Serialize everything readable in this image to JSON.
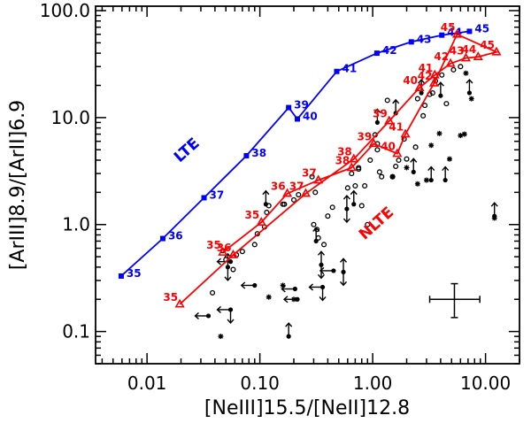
{
  "chart_data": {
    "type": "scatter",
    "xscale": "log",
    "yscale": "log",
    "xlim": [
      0.0035,
      20
    ],
    "ylim": [
      0.05,
      110
    ],
    "xticks": [
      {
        "v": 0.01,
        "label": "0.01"
      },
      {
        "v": 0.1,
        "label": "0.10"
      },
      {
        "v": 1,
        "label": "1.00"
      },
      {
        "v": 10,
        "label": "10.00"
      }
    ],
    "yticks": [
      {
        "v": 0.1,
        "label": "0.1"
      },
      {
        "v": 1,
        "label": "1.0"
      },
      {
        "v": 10,
        "label": "10.0"
      },
      {
        "v": 100,
        "label": "100.0"
      }
    ],
    "xlabel": "[NeIII]15.5/[NeII]12.8",
    "ylabel": "[ArIII]8.9/[ArII]6.9",
    "series": [
      {
        "name": "LTE",
        "color": "#0000ff",
        "marker": "square",
        "label_pos": [
          0.024,
          4.6
        ],
        "points": [
          {
            "x": 0.0059,
            "y": 0.33,
            "label": "35"
          },
          {
            "x": 0.0138,
            "y": 0.74,
            "label": "36"
          },
          {
            "x": 0.032,
            "y": 1.78,
            "label": "37"
          },
          {
            "x": 0.076,
            "y": 4.4,
            "label": "38"
          },
          {
            "x": 0.18,
            "y": 12.4,
            "label": "39"
          },
          {
            "x": 0.215,
            "y": 9.7,
            "label": "40"
          },
          {
            "x": 0.48,
            "y": 27.0,
            "label": "41"
          },
          {
            "x": 1.09,
            "y": 40.0,
            "label": "42"
          },
          {
            "x": 2.2,
            "y": 51.0,
            "label": "43"
          },
          {
            "x": 4.1,
            "y": 59.0,
            "label": "44"
          },
          {
            "x": 7.2,
            "y": 64.0,
            "label": "45"
          }
        ]
      },
      {
        "name": "NLTE",
        "color": "#ff0000",
        "marker": "triangle",
        "label_pos": [
          1.15,
          0.95
        ],
        "points": [
          {
            "x": 0.0195,
            "y": 0.18,
            "label": "35"
          },
          {
            "x": 0.058,
            "y": 0.52,
            "label": "36"
          },
          {
            "x": 0.255,
            "y": 1.95,
            "label": "37"
          },
          {
            "x": 0.68,
            "y": 4.1,
            "label": "38"
          },
          {
            "x": 1.4,
            "y": 9.3,
            "label": "39"
          },
          {
            "x": 2.6,
            "y": 19.0,
            "label": "40"
          },
          {
            "x": 3.55,
            "y": 25.0,
            "label": "41"
          },
          {
            "x": 4.9,
            "y": 32.0,
            "label": "42"
          },
          {
            "x": 6.7,
            "y": 36.0,
            "label": "43"
          },
          {
            "x": 8.6,
            "y": 37.0,
            "label": "44"
          },
          {
            "x": 12.5,
            "y": 41.0,
            "label": "45"
          },
          {
            "x": 5.6,
            "y": 60.0,
            "label": "45"
          },
          {
            "x": 3.5,
            "y": 21.0,
            "label": "42"
          },
          {
            "x": 1.95,
            "y": 7.0,
            "label": "41"
          },
          {
            "x": 1.65,
            "y": 4.6,
            "label": "40"
          },
          {
            "x": 1.02,
            "y": 5.7,
            "label": "39"
          },
          {
            "x": 0.65,
            "y": 3.4,
            "label": "38"
          },
          {
            "x": 0.33,
            "y": 2.6,
            "label": "37"
          },
          {
            "x": 0.175,
            "y": 1.95,
            "label": "36"
          },
          {
            "x": 0.103,
            "y": 1.05,
            "label": "35"
          },
          {
            "x": 0.047,
            "y": 0.55,
            "label": "35"
          }
        ]
      }
    ],
    "observations": {
      "circles": [
        [
          0.038,
          0.23
        ],
        [
          0.047,
          0.57
        ],
        [
          0.05,
          0.47
        ],
        [
          0.058,
          0.38
        ],
        [
          0.062,
          0.52
        ],
        [
          0.07,
          0.56
        ],
        [
          0.09,
          0.65
        ],
        [
          0.095,
          0.82
        ],
        [
          0.11,
          0.95
        ],
        [
          0.115,
          1.3
        ],
        [
          0.12,
          1.5
        ],
        [
          0.16,
          1.55
        ],
        [
          0.2,
          1.7
        ],
        [
          0.22,
          1.9
        ],
        [
          0.29,
          2.8
        ],
        [
          0.31,
          2.0
        ],
        [
          0.3,
          1.0
        ],
        [
          0.32,
          0.9
        ],
        [
          0.33,
          0.75
        ],
        [
          0.37,
          0.65
        ],
        [
          0.4,
          1.2
        ],
        [
          0.44,
          1.45
        ],
        [
          0.6,
          2.2
        ],
        [
          0.65,
          3.0
        ],
        [
          0.7,
          2.3
        ],
        [
          0.75,
          3.4
        ],
        [
          0.8,
          1.5
        ],
        [
          0.85,
          2.3
        ],
        [
          0.9,
          1.0
        ],
        [
          0.95,
          4.0
        ],
        [
          1.05,
          6.9
        ],
        [
          1.1,
          5.7
        ],
        [
          1.1,
          5.0
        ],
        [
          1.15,
          3.1
        ],
        [
          1.2,
          2.8
        ],
        [
          1.35,
          14.5
        ],
        [
          1.5,
          2.8
        ],
        [
          1.6,
          3.5
        ],
        [
          1.7,
          4.0
        ],
        [
          1.9,
          6.3
        ],
        [
          2.0,
          4.1
        ],
        [
          2.4,
          5.3
        ],
        [
          2.5,
          15.0
        ],
        [
          2.8,
          10.4
        ],
        [
          2.9,
          13.0
        ],
        [
          3.2,
          16.5
        ],
        [
          3.4,
          17.0
        ],
        [
          3.6,
          22.0
        ],
        [
          4.1,
          25.0
        ],
        [
          4.5,
          13.5
        ],
        [
          5.2,
          28.0
        ],
        [
          6.0,
          30.0
        ],
        [
          0.165,
          1.55
        ],
        [
          0.75,
          3.3
        ]
      ],
      "stars": [
        [
          0.045,
          0.09
        ],
        [
          0.12,
          0.21
        ],
        [
          0.16,
          0.27
        ],
        [
          0.2,
          0.2
        ],
        [
          1.5,
          2.8
        ],
        [
          2.0,
          3.4
        ],
        [
          2.5,
          2.4
        ],
        [
          3.0,
          2.6
        ],
        [
          3.3,
          5.5
        ],
        [
          4.8,
          4.1
        ],
        [
          6.0,
          6.8
        ],
        [
          6.5,
          7.0
        ],
        [
          7.5,
          15.0
        ],
        [
          6.7,
          26.0
        ],
        [
          12.0,
          1.15
        ],
        [
          3.9,
          7.1
        ]
      ],
      "limits": [
        {
          "x": 0.035,
          "y": 0.14,
          "dirs": [
            "left"
          ]
        },
        {
          "x": 0.052,
          "y": 0.4,
          "dirs": [
            "up",
            "down"
          ]
        },
        {
          "x": 0.055,
          "y": 0.16,
          "dirs": [
            "left",
            "down"
          ]
        },
        {
          "x": 0.055,
          "y": 0.45,
          "dirs": [
            "left"
          ]
        },
        {
          "x": 0.09,
          "y": 0.27,
          "dirs": [
            "left"
          ]
        },
        {
          "x": 0.113,
          "y": 1.55,
          "dirs": [
            "up"
          ]
        },
        {
          "x": 0.18,
          "y": 0.09,
          "dirs": [
            "up"
          ]
        },
        {
          "x": 0.215,
          "y": 0.2,
          "dirs": [
            "left"
          ]
        },
        {
          "x": 0.205,
          "y": 0.25,
          "dirs": [
            "left"
          ]
        },
        {
          "x": 0.315,
          "y": 0.7,
          "dirs": [
            "up"
          ]
        },
        {
          "x": 0.35,
          "y": 0.42,
          "dirs": [
            "up",
            "down"
          ]
        },
        {
          "x": 0.36,
          "y": 0.26,
          "dirs": [
            "left",
            "down"
          ]
        },
        {
          "x": 0.45,
          "y": 0.37,
          "dirs": [
            "left"
          ]
        },
        {
          "x": 0.55,
          "y": 0.36,
          "dirs": [
            "up",
            "down"
          ]
        },
        {
          "x": 0.59,
          "y": 1.4,
          "dirs": [
            "up",
            "down"
          ]
        },
        {
          "x": 0.68,
          "y": 1.55,
          "dirs": [
            "up"
          ]
        },
        {
          "x": 1.1,
          "y": 9.0,
          "dirs": [
            "up"
          ]
        },
        {
          "x": 1.6,
          "y": 11.0,
          "dirs": [
            "up"
          ]
        },
        {
          "x": 2.3,
          "y": 3.1,
          "dirs": [
            "up"
          ]
        },
        {
          "x": 2.7,
          "y": 17.0,
          "dirs": [
            "up"
          ]
        },
        {
          "x": 3.3,
          "y": 2.6,
          "dirs": [
            "up"
          ]
        },
        {
          "x": 4.0,
          "y": 16.0,
          "dirs": [
            "up"
          ]
        },
        {
          "x": 4.4,
          "y": 2.6,
          "dirs": [
            "up"
          ]
        },
        {
          "x": 7.2,
          "y": 17.0,
          "dirs": [
            "up"
          ]
        },
        {
          "x": 12.0,
          "y": 1.2,
          "dirs": [
            "up"
          ]
        }
      ]
    },
    "errorbar": {
      "x": 5.3,
      "y": 0.2,
      "xerr": [
        3.2,
        8.9
      ],
      "yerr": [
        0.135,
        0.28
      ]
    }
  }
}
